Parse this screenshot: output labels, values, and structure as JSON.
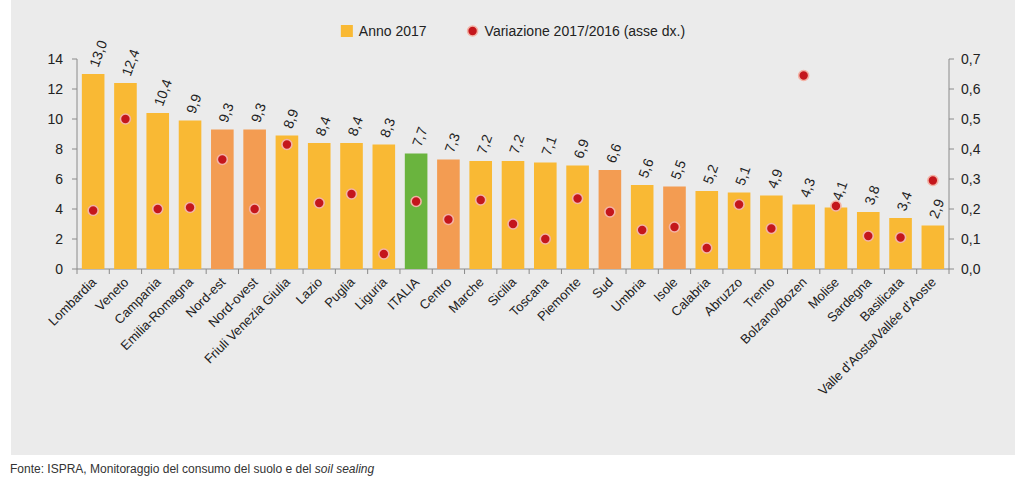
{
  "chart_data": {
    "type": "bar",
    "categories": [
      "Lombardia",
      "Veneto",
      "Campania",
      "Emilia-Romagna",
      "Nord-est",
      "Nord-ovest",
      "Friuli Venezia Giulia",
      "Lazio",
      "Puglia",
      "Liguria",
      "ITALIA",
      "Centro",
      "Marche",
      "Sicilia",
      "Toscana",
      "Piemonte",
      "Sud",
      "Umbria",
      "Isole",
      "Calabria",
      "Abruzzo",
      "Trento",
      "Bolzano/Bozen",
      "Molise",
      "Sardegna",
      "Basilicata",
      "Valle d'Aosta/Vallée d'Aoste"
    ],
    "series": [
      {
        "name": "Anno 2017",
        "type": "bar",
        "color": "#F9B934",
        "colors": [
          "#F9B934",
          "#F9B934",
          "#F9B934",
          "#F9B934",
          "#F39C52",
          "#F39C52",
          "#F9B934",
          "#F9B934",
          "#F9B934",
          "#F9B934",
          "#6AB43E",
          "#F39C52",
          "#F9B934",
          "#F9B934",
          "#F9B934",
          "#F9B934",
          "#F39C52",
          "#F9B934",
          "#F39C52",
          "#F9B934",
          "#F9B934",
          "#F9B934",
          "#F9B934",
          "#F9B934",
          "#F9B934",
          "#F9B934",
          "#F9B934"
        ],
        "values": [
          13.0,
          12.4,
          10.4,
          9.9,
          9.3,
          9.3,
          8.9,
          8.4,
          8.4,
          8.3,
          7.7,
          7.3,
          7.2,
          7.2,
          7.1,
          6.9,
          6.6,
          5.6,
          5.5,
          5.2,
          5.1,
          4.9,
          4.3,
          4.1,
          3.8,
          3.4,
          2.9
        ],
        "value_labels": [
          "13,0",
          "12,4",
          "10,4",
          "9,9",
          "9,3",
          "9,3",
          "8,9",
          "8,4",
          "8,4",
          "8,3",
          "7,7",
          "7,3",
          "7,2",
          "7,2",
          "7,1",
          "6,9",
          "6,6",
          "5,6",
          "5,5",
          "5,2",
          "5,1",
          "4,9",
          "4,3",
          "4,1",
          "3,8",
          "3,4",
          "2,9"
        ]
      },
      {
        "name": "Variazione 2017/2016 (asse dx.)",
        "type": "scatter",
        "axis": "y2",
        "color": "#C4161C",
        "marker": "circle",
        "values": [
          0.195,
          0.5,
          0.2,
          0.205,
          0.365,
          0.2,
          0.415,
          0.22,
          0.25,
          0.05,
          0.225,
          0.165,
          0.23,
          0.15,
          0.1,
          0.235,
          0.19,
          0.13,
          0.14,
          0.07,
          0.215,
          0.135,
          0.645,
          0.21,
          0.11,
          0.105,
          0.295
        ]
      }
    ],
    "ylim": [
      0,
      14
    ],
    "yticks": [
      0,
      2,
      4,
      6,
      8,
      10,
      12,
      14
    ],
    "y2lim": [
      0,
      0.7
    ],
    "y2ticks": [
      {
        "value": 0,
        "label": "0,0"
      },
      {
        "value": 0.1,
        "label": "0,1"
      },
      {
        "value": 0.2,
        "label": "0,2"
      },
      {
        "value": 0.3,
        "label": "0,3"
      },
      {
        "value": 0.4,
        "label": "0,4"
      },
      {
        "value": 0.5,
        "label": "0,5"
      },
      {
        "value": 0.6,
        "label": "0,6"
      },
      {
        "value": 0.7,
        "label": "0,7"
      }
    ],
    "grid": false,
    "legend": "top",
    "data_labels": true,
    "annotations": [
      "Fonte: ISPRA, Monitoraggio del consumo del suolo e del ",
      "soil sealing"
    ]
  }
}
